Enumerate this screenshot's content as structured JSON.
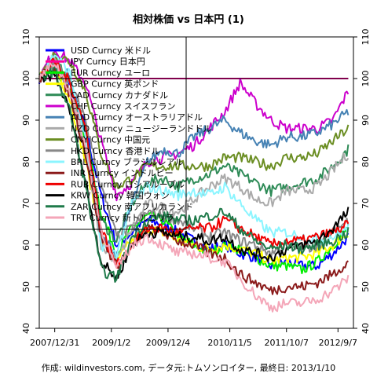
{
  "title": "相対株価 vs 日本円 (1)",
  "caption": "作成: wildinvestors.com, データ元:トムソンロイター, 最終日: 2013/1/10",
  "chart_data": {
    "type": "line",
    "title": "相対株価 vs 日本円 (1)",
    "xlabel": "",
    "ylabel": "",
    "ylim": [
      40,
      110
    ],
    "yticks": [
      "40",
      "50",
      "60",
      "70",
      "80",
      "90",
      "100",
      "110"
    ],
    "xticks": [
      "2007/12/31",
      "2009/1/2",
      "2009/12/4",
      "2010/11/5",
      "2011/10/7",
      "2012/9/7"
    ],
    "x": [
      0,
      3,
      6,
      9,
      12,
      15,
      18,
      21,
      24,
      27,
      30,
      33,
      36,
      39,
      42,
      45,
      48,
      51,
      54,
      57,
      60
    ],
    "reference_line": 100,
    "legend_position": "top-left",
    "series": [
      {
        "name": "USD Curncy 米ドル",
        "color": "#0000ff",
        "values": [
          100,
          104,
          98,
          88,
          72,
          60,
          63,
          66,
          65,
          63,
          61,
          59,
          60,
          58,
          57,
          55,
          56,
          55,
          55,
          58,
          62
        ]
      },
      {
        "name": "JPY Curncy 日本円",
        "color": "#ff0099",
        "values": [
          100,
          100,
          100,
          100,
          100,
          100,
          100,
          100,
          100,
          100,
          100,
          100,
          100,
          100,
          100,
          100,
          100,
          100,
          100,
          100,
          100
        ]
      },
      {
        "name": "EUR Curncy ユーロ",
        "color": "#00ee00",
        "values": [
          100,
          103,
          97,
          86,
          68,
          58,
          64,
          67,
          66,
          62,
          60,
          58,
          60,
          59,
          57,
          55,
          55,
          54,
          56,
          60,
          64
        ]
      },
      {
        "name": "GBP Curncy 英ポンド",
        "color": "#ffff00",
        "values": [
          100,
          103,
          95,
          80,
          62,
          56,
          61,
          64,
          63,
          61,
          60,
          59,
          60,
          59,
          58,
          56,
          57,
          57,
          58,
          60,
          63
        ]
      },
      {
        "name": "CAD Curncy カナダドル",
        "color": "#2e8b57",
        "values": [
          100,
          105,
          100,
          87,
          66,
          61,
          70,
          75,
          76,
          74,
          76,
          77,
          79,
          77,
          75,
          73,
          74,
          75,
          76,
          79,
          83
        ]
      },
      {
        "name": "CHF Curncy スイスフラン",
        "color": "#cc00cc",
        "values": [
          100,
          107,
          104,
          99,
          85,
          72,
          75,
          80,
          81,
          82,
          84,
          88,
          92,
          99,
          94,
          90,
          88,
          88,
          88,
          90,
          97
        ]
      },
      {
        "name": "AUD Curncy オーストラリアドル",
        "color": "#4682b4",
        "values": [
          100,
          105,
          100,
          86,
          62,
          58,
          70,
          80,
          83,
          82,
          86,
          88,
          90,
          87,
          85,
          84,
          86,
          86,
          87,
          89,
          92
        ]
      },
      {
        "name": "NZD Curncy ニュージーランドドル",
        "color": "#aaaaaa",
        "values": [
          100,
          104,
          97,
          82,
          60,
          56,
          64,
          70,
          69,
          68,
          71,
          74,
          76,
          74,
          71,
          70,
          73,
          73,
          74,
          78,
          82
        ]
      },
      {
        "name": "CNY Curncy 中国元",
        "color": "#6b8e23",
        "values": [
          100,
          106,
          104,
          97,
          82,
          74,
          76,
          79,
          79,
          79,
          79,
          79,
          81,
          81,
          80,
          79,
          81,
          81,
          82,
          85,
          88
        ]
      },
      {
        "name": "HKD Curncy 香港ドル",
        "color": "#888888",
        "values": [
          100,
          104,
          99,
          90,
          74,
          62,
          64,
          68,
          67,
          66,
          64,
          62,
          63,
          61,
          60,
          58,
          60,
          59,
          60,
          63,
          66
        ]
      },
      {
        "name": "BRL Curncy ブラジルレアル",
        "color": "#8bf5ff",
        "values": [
          100,
          106,
          101,
          85,
          60,
          58,
          70,
          74,
          73,
          72,
          73,
          72,
          74,
          70,
          66,
          63,
          63,
          62,
          61,
          62,
          64
        ]
      },
      {
        "name": "INR Curncy インドルピー",
        "color": "#8b1a1a",
        "values": [
          100,
          103,
          96,
          82,
          62,
          55,
          60,
          64,
          63,
          61,
          60,
          58,
          57,
          53,
          51,
          49,
          50,
          50,
          51,
          53,
          56
        ]
      },
      {
        "name": "RUB Curncy ロシアルーブル",
        "color": "#ee0000",
        "values": [
          100,
          104,
          99,
          88,
          64,
          55,
          60,
          64,
          64,
          63,
          64,
          64,
          66,
          64,
          62,
          60,
          61,
          61,
          62,
          63,
          65
        ]
      },
      {
        "name": "KRW Curncy 韓国ウォン",
        "color": "#000000",
        "values": [
          100,
          101,
          92,
          75,
          56,
          52,
          60,
          63,
          63,
          62,
          62,
          61,
          62,
          59,
          58,
          57,
          59,
          60,
          61,
          64,
          68
        ]
      },
      {
        "name": "ZAR Curncy 南アフリカランド",
        "color": "#1f7a4a",
        "values": [
          100,
          102,
          92,
          74,
          54,
          52,
          62,
          66,
          67,
          66,
          66,
          67,
          68,
          64,
          61,
          59,
          60,
          59,
          60,
          61,
          63
        ]
      },
      {
        "name": "TRY Curncy 新トルコリラ",
        "color": "#f4a6b8",
        "values": [
          100,
          104,
          97,
          84,
          64,
          54,
          60,
          62,
          60,
          58,
          58,
          57,
          56,
          52,
          48,
          45,
          46,
          46,
          47,
          49,
          52
        ]
      }
    ]
  }
}
